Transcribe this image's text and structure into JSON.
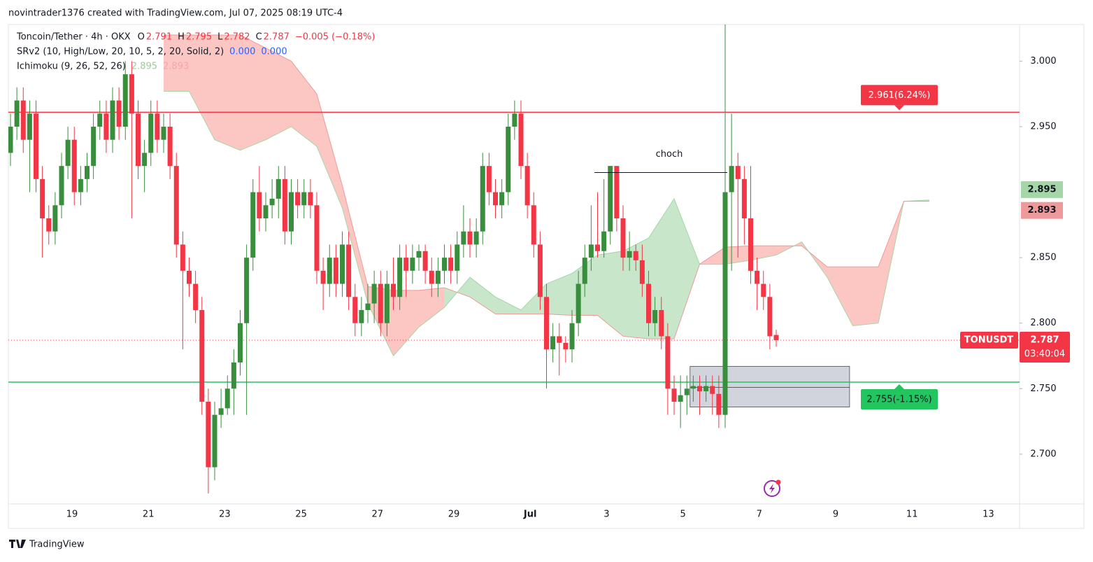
{
  "header": {
    "attribution": "novintrader1376 created with TradingView.com, Jul 07, 2025 08:19 UTC-4"
  },
  "chart_data": {
    "type": "candlestick",
    "legend": {
      "symbol": "Toncoin/Tether · 4h · OKX",
      "o": "O",
      "h": "H",
      "l": "L",
      "c": "C",
      "change": "−0.005 (−0.18%)",
      "indicators": [
        {
          "name": "SRv2 (10, High/Low, 20, 10, 5, 2, 20, Solid, 2)",
          "values": [
            "0.000",
            "0.000"
          ],
          "color": "#2962ff"
        },
        {
          "name": "Ichimoku (9, 26, 52, 26)",
          "values": [
            "2.895",
            "2.893"
          ],
          "colors": [
            "#9ccc9c",
            "#f4a6a6"
          ]
        }
      ]
    },
    "up_color": "#388e3c",
    "down_color": "#f23645",
    "ohlc": [
      [
        2.93,
        2.96,
        2.92,
        2.95
      ],
      [
        2.95,
        2.98,
        2.94,
        2.97
      ],
      [
        2.97,
        2.98,
        2.93,
        2.94
      ],
      [
        2.94,
        2.97,
        2.9,
        2.96
      ],
      [
        2.96,
        2.97,
        2.9,
        2.91
      ],
      [
        2.91,
        2.92,
        2.85,
        2.88
      ],
      [
        2.88,
        2.89,
        2.86,
        2.87
      ],
      [
        2.87,
        2.9,
        2.86,
        2.89
      ],
      [
        2.89,
        2.93,
        2.88,
        2.92
      ],
      [
        2.92,
        2.95,
        2.91,
        2.94
      ],
      [
        2.94,
        2.95,
        2.89,
        2.9
      ],
      [
        2.9,
        2.92,
        2.89,
        2.91
      ],
      [
        2.91,
        2.93,
        2.9,
        2.92
      ],
      [
        2.92,
        2.96,
        2.91,
        2.95
      ],
      [
        2.95,
        2.97,
        2.94,
        2.96
      ],
      [
        2.96,
        2.97,
        2.93,
        2.94
      ],
      [
        2.94,
        2.98,
        2.93,
        2.97
      ],
      [
        2.97,
        2.98,
        2.94,
        2.95
      ],
      [
        2.95,
        3.0,
        2.94,
        2.99
      ],
      [
        2.99,
        3.0,
        2.88,
        2.96
      ],
      [
        2.96,
        2.97,
        2.91,
        2.92
      ],
      [
        2.92,
        2.94,
        2.9,
        2.93
      ],
      [
        2.93,
        2.97,
        2.92,
        2.96
      ],
      [
        2.96,
        2.97,
        2.93,
        2.94
      ],
      [
        2.94,
        2.96,
        2.93,
        2.95
      ],
      [
        2.95,
        2.96,
        2.91,
        2.92
      ],
      [
        2.92,
        2.93,
        2.85,
        2.86
      ],
      [
        2.86,
        2.87,
        2.78,
        2.84
      ],
      [
        2.84,
        2.85,
        2.82,
        2.83
      ],
      [
        2.83,
        2.84,
        2.8,
        2.81
      ],
      [
        2.81,
        2.82,
        2.73,
        2.74
      ],
      [
        2.74,
        2.75,
        2.67,
        2.69
      ],
      [
        2.69,
        2.74,
        2.68,
        2.73
      ],
      [
        2.73,
        2.75,
        2.72,
        2.735
      ],
      [
        2.735,
        2.76,
        2.73,
        2.75
      ],
      [
        2.75,
        2.78,
        2.73,
        2.77
      ],
      [
        2.77,
        2.81,
        2.76,
        2.8
      ],
      [
        2.8,
        2.86,
        2.73,
        2.85
      ],
      [
        2.85,
        2.91,
        2.84,
        2.9
      ],
      [
        2.9,
        2.92,
        2.87,
        2.88
      ],
      [
        2.88,
        2.9,
        2.87,
        2.89
      ],
      [
        2.89,
        2.91,
        2.88,
        2.895
      ],
      [
        2.895,
        2.92,
        2.88,
        2.91
      ],
      [
        2.91,
        2.92,
        2.86,
        2.87
      ],
      [
        2.87,
        2.91,
        2.86,
        2.9
      ],
      [
        2.9,
        2.91,
        2.88,
        2.89
      ],
      [
        2.89,
        2.91,
        2.88,
        2.9
      ],
      [
        2.9,
        2.91,
        2.88,
        2.89
      ],
      [
        2.89,
        2.9,
        2.83,
        2.84
      ],
      [
        2.84,
        2.85,
        2.81,
        2.83
      ],
      [
        2.83,
        2.86,
        2.82,
        2.85
      ],
      [
        2.85,
        2.86,
        2.82,
        2.83
      ],
      [
        2.83,
        2.87,
        2.82,
        2.86
      ],
      [
        2.86,
        2.87,
        2.81,
        2.82
      ],
      [
        2.82,
        2.83,
        2.79,
        2.8
      ],
      [
        2.8,
        2.82,
        2.79,
        2.81
      ],
      [
        2.81,
        2.83,
        2.8,
        2.815
      ],
      [
        2.815,
        2.84,
        2.8,
        2.83
      ],
      [
        2.83,
        2.84,
        2.79,
        2.8
      ],
      [
        2.8,
        2.84,
        2.79,
        2.83
      ],
      [
        2.83,
        2.85,
        2.81,
        2.82
      ],
      [
        2.82,
        2.86,
        2.81,
        2.85
      ],
      [
        2.85,
        2.86,
        2.82,
        2.84
      ],
      [
        2.84,
        2.86,
        2.83,
        2.85
      ],
      [
        2.85,
        2.86,
        2.84,
        2.855
      ],
      [
        2.855,
        2.86,
        2.83,
        2.84
      ],
      [
        2.84,
        2.85,
        2.82,
        2.83
      ],
      [
        2.83,
        2.85,
        2.82,
        2.84
      ],
      [
        2.84,
        2.86,
        2.83,
        2.85
      ],
      [
        2.85,
        2.86,
        2.83,
        2.84
      ],
      [
        2.84,
        2.87,
        2.83,
        2.86
      ],
      [
        2.86,
        2.89,
        2.85,
        2.87
      ],
      [
        2.87,
        2.88,
        2.85,
        2.86
      ],
      [
        2.86,
        2.88,
        2.85,
        2.87
      ],
      [
        2.87,
        2.93,
        2.86,
        2.92
      ],
      [
        2.92,
        2.93,
        2.89,
        2.9
      ],
      [
        2.9,
        2.91,
        2.88,
        2.89
      ],
      [
        2.89,
        2.91,
        2.88,
        2.9
      ],
      [
        2.9,
        2.96,
        2.89,
        2.95
      ],
      [
        2.95,
        2.97,
        2.94,
        2.96
      ],
      [
        2.96,
        2.97,
        2.91,
        2.92
      ],
      [
        2.92,
        2.93,
        2.88,
        2.89
      ],
      [
        2.89,
        2.9,
        2.85,
        2.86
      ],
      [
        2.86,
        2.87,
        2.81,
        2.82
      ],
      [
        2.82,
        2.83,
        2.75,
        2.78
      ],
      [
        2.78,
        2.8,
        2.77,
        2.79
      ],
      [
        2.79,
        2.8,
        2.76,
        2.785
      ],
      [
        2.785,
        2.79,
        2.77,
        2.78
      ],
      [
        2.78,
        2.81,
        2.77,
        2.8
      ],
      [
        2.8,
        2.84,
        2.79,
        2.83
      ],
      [
        2.83,
        2.86,
        2.82,
        2.85
      ],
      [
        2.85,
        2.89,
        2.84,
        2.86
      ],
      [
        2.86,
        2.9,
        2.85,
        2.855
      ],
      [
        2.855,
        2.91,
        2.85,
        2.87
      ],
      [
        2.87,
        2.92,
        2.86,
        2.92
      ],
      [
        2.92,
        2.92,
        2.87,
        2.88
      ],
      [
        2.88,
        2.89,
        2.84,
        2.85
      ],
      [
        2.85,
        2.87,
        2.84,
        2.855
      ],
      [
        2.855,
        2.86,
        2.84,
        2.848
      ],
      [
        2.848,
        2.86,
        2.82,
        2.83
      ],
      [
        2.83,
        2.84,
        2.79,
        2.8
      ],
      [
        2.8,
        2.82,
        2.79,
        2.81
      ],
      [
        2.81,
        2.82,
        2.78,
        2.79
      ],
      [
        2.79,
        2.8,
        2.73,
        2.75
      ],
      [
        2.75,
        2.76,
        2.73,
        2.74
      ],
      [
        2.74,
        2.76,
        2.72,
        2.745
      ],
      [
        2.745,
        2.76,
        2.73,
        2.75
      ],
      [
        2.75,
        2.76,
        2.74,
        2.752
      ],
      [
        2.752,
        2.76,
        2.73,
        2.748
      ],
      [
        2.748,
        2.76,
        2.74,
        2.752
      ],
      [
        2.752,
        2.76,
        2.73,
        2.746
      ],
      [
        2.746,
        2.76,
        2.72,
        2.73
      ],
      [
        2.73,
        3.03,
        2.72,
        2.9
      ],
      [
        2.9,
        2.96,
        2.84,
        2.92
      ],
      [
        2.92,
        2.93,
        2.85,
        2.91
      ],
      [
        2.91,
        2.92,
        2.86,
        2.88
      ],
      [
        2.88,
        2.92,
        2.83,
        2.84
      ],
      [
        2.84,
        2.85,
        2.81,
        2.83
      ],
      [
        2.83,
        2.84,
        2.81,
        2.82
      ],
      [
        2.82,
        2.83,
        2.78,
        2.79
      ],
      [
        2.791,
        2.795,
        2.782,
        2.787
      ]
    ],
    "ichimoku": {
      "span_a": [
        2.977,
        2.977,
        2.94,
        2.932,
        2.94,
        2.95,
        2.935,
        2.888,
        2.815,
        2.775,
        2.797,
        2.812,
        2.835,
        2.82,
        2.81,
        2.83,
        2.838,
        2.852,
        2.855,
        2.865,
        2.895,
        2.845,
        2.845,
        2.848,
        2.852,
        2.862,
        2.835,
        2.798,
        2.8,
        2.893,
        2.894
      ],
      "span_b": [
        3.02,
        3.02,
        3.02,
        3.02,
        3.01,
        3.0,
        2.975,
        2.905,
        2.828,
        2.825,
        2.825,
        2.827,
        2.82,
        2.807,
        2.807,
        2.807,
        2.806,
        2.806,
        2.79,
        2.788,
        2.788,
        2.845,
        2.858,
        2.859,
        2.859,
        2.859,
        2.843,
        2.843,
        2.843,
        2.893,
        2.893
      ],
      "bull_color": "#c8e6c9",
      "bear_color": "#fcc7c3",
      "span_a_color": "#a5d6a7",
      "span_b_color": "#ef9a9a"
    },
    "ylim": [
      2.662,
      3.028
    ],
    "yticks": [
      {
        "value": 3,
        "label": "3.000"
      },
      {
        "value": 2.95,
        "label": "2.950"
      },
      {
        "value": 2.85,
        "label": "2.850"
      },
      {
        "value": 2.8,
        "label": "2.800"
      },
      {
        "value": 2.75,
        "label": "2.750"
      },
      {
        "value": 2.7,
        "label": "2.700"
      }
    ],
    "x_labels": [
      "19",
      "21",
      "23",
      "25",
      "27",
      "29",
      "Jul",
      "3",
      "5",
      "7",
      "9",
      "11",
      "13"
    ],
    "levels": [
      {
        "value": 2.961,
        "label": "2.961(6.24%)",
        "color": "#f23645",
        "side": "above"
      },
      {
        "value": 2.755,
        "label": "2.755(-1.15%)",
        "color": "#22c55e",
        "side": "below"
      }
    ],
    "cloud_tags": [
      {
        "value": 2.895,
        "color": "#a5d6a7"
      },
      {
        "value": 2.893,
        "color": "#ef9a9a"
      }
    ],
    "last_price": {
      "symbol": "TONUSDT",
      "value": 2.787,
      "countdown": "03:40:04",
      "color": "#f23645"
    },
    "annotation": {
      "text": "choch",
      "value": 2.915
    },
    "zone": {
      "top": 2.767,
      "mid": 2.751,
      "bottom": 2.736
    }
  },
  "footer": {
    "brand": "TradingView"
  }
}
